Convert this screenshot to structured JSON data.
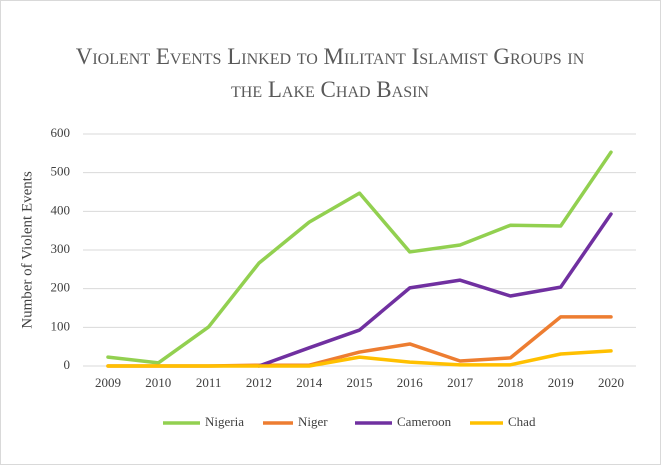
{
  "chart_data": {
    "type": "line",
    "title": "Violent Events Linked to Militant Islamist Groups in the Lake Chad Basin",
    "y_label": "Number of Violent Events",
    "categories": [
      "2009",
      "2010",
      "2011",
      "2012",
      "2014",
      "2015",
      "2016",
      "2017",
      "2018",
      "2019",
      "2020"
    ],
    "series": [
      {
        "name": "Nigeria",
        "color": "#92d050",
        "values": [
          23,
          8,
          101,
          266,
          372,
          447,
          295,
          313,
          364,
          362,
          553
        ]
      },
      {
        "name": "Niger",
        "color": "#ed7d31",
        "values": [
          0,
          0,
          0,
          2,
          2,
          36,
          57,
          13,
          21,
          127,
          127
        ]
      },
      {
        "name": "Cameroon",
        "color": "#7030a0",
        "values": [
          null,
          null,
          null,
          0,
          47,
          93,
          202,
          222,
          181,
          204,
          393
        ]
      },
      {
        "name": "Chad",
        "color": "#ffc000",
        "values": [
          0,
          0,
          0,
          0,
          0,
          23,
          10,
          3,
          3,
          31,
          39
        ]
      }
    ],
    "ylim": [
      0,
      600
    ],
    "yticks": [
      0,
      100,
      200,
      300,
      400,
      500,
      600
    ],
    "grid": true,
    "legend": "bottom"
  }
}
